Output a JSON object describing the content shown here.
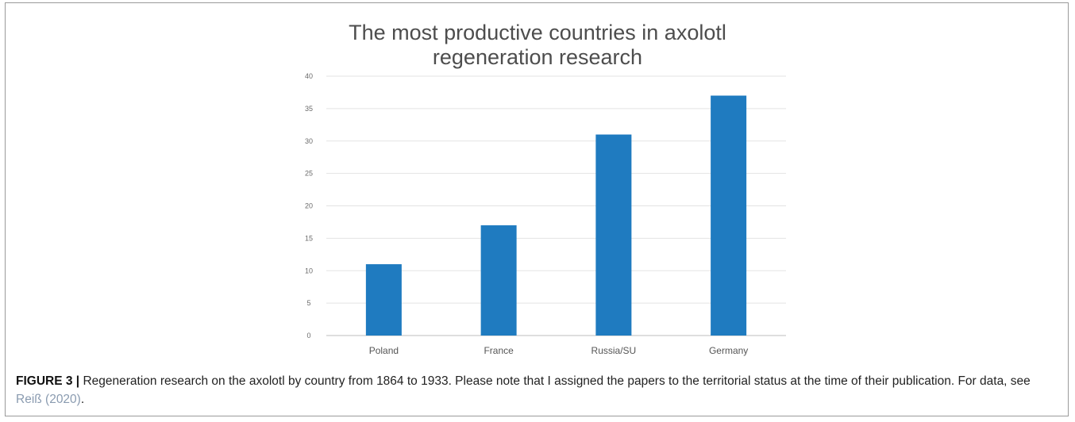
{
  "chart_data": {
    "type": "bar",
    "title_lines": [
      "The most productive countries in axolotl",
      "regeneration research"
    ],
    "categories": [
      "Poland",
      "France",
      "Russia/SU",
      "Germany"
    ],
    "values": [
      11,
      17,
      31,
      37
    ],
    "ylim": [
      0,
      40
    ],
    "yticks": [
      0,
      5,
      10,
      15,
      20,
      25,
      30,
      35,
      40
    ],
    "xlabel": "",
    "ylabel": "",
    "grid": true,
    "legend": "none",
    "bar_color": "#1f7bc0"
  },
  "caption": {
    "label": "FIGURE 3 |",
    "text": " Regeneration research on the axolotl by country from 1864 to 1933. Please note that I assigned the papers to the territorial status at the time of their publication. For data, see ",
    "ref": "Reiß (2020)",
    "end": "."
  }
}
